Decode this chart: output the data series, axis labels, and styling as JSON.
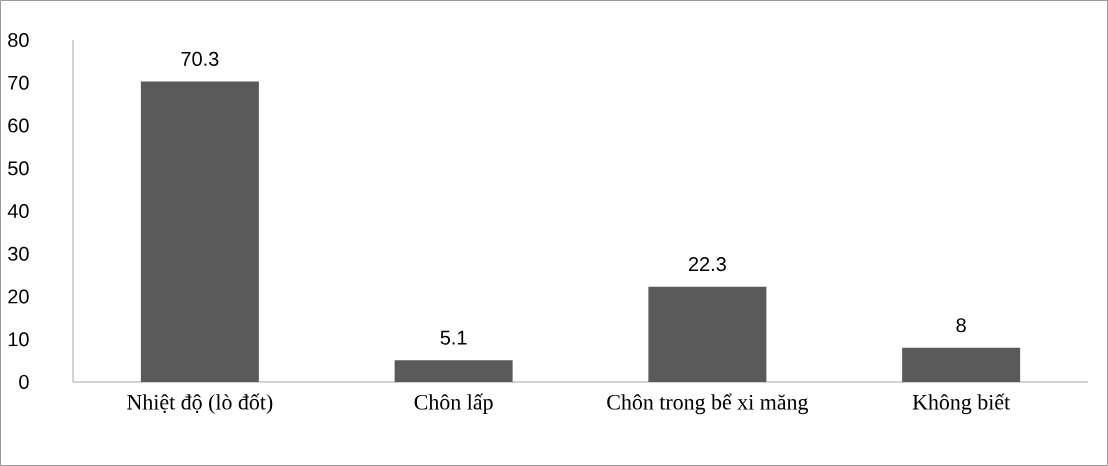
{
  "chart_data": {
    "type": "bar",
    "categories": [
      "Nhiệt độ (lò đốt)",
      "Chôn lấp",
      "Chôn trong bể xi măng",
      "Không biết"
    ],
    "values": [
      70.3,
      5.1,
      22.3,
      8
    ],
    "color": "#5a5a5a",
    "data_labels": true,
    "ylim": [
      0,
      80
    ],
    "yticks": [
      0,
      10,
      20,
      30,
      40,
      50,
      60,
      70,
      80
    ]
  }
}
